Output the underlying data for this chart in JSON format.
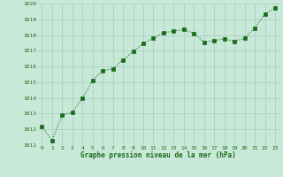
{
  "x": [
    0,
    1,
    2,
    3,
    4,
    5,
    6,
    7,
    8,
    9,
    10,
    11,
    12,
    13,
    14,
    15,
    16,
    17,
    18,
    19,
    20,
    21,
    22,
    23
  ],
  "y": [
    1012.2,
    1011.3,
    1012.9,
    1013.1,
    1014.0,
    1015.1,
    1015.75,
    1015.85,
    1016.4,
    1016.95,
    1017.45,
    1017.8,
    1018.15,
    1018.25,
    1018.35,
    1018.1,
    1017.55,
    1017.65,
    1017.75,
    1017.6,
    1017.8,
    1018.45,
    1019.35,
    1019.7
  ],
  "ylim": [
    1011,
    1020
  ],
  "yticks": [
    1011,
    1012,
    1013,
    1014,
    1015,
    1016,
    1017,
    1018,
    1019,
    1020
  ],
  "xticks": [
    0,
    1,
    2,
    3,
    4,
    5,
    6,
    7,
    8,
    9,
    10,
    11,
    12,
    13,
    14,
    15,
    16,
    17,
    18,
    19,
    20,
    21,
    22,
    23
  ],
  "xlabel": "Graphe pression niveau de la mer (hPa)",
  "line_color": "#1a6b1a",
  "marker_color": "#1a6b1a",
  "bg_color": "#c8e8d8",
  "grid_color": "#a8ccc0",
  "axis_label_color": "#1a6b1a",
  "tick_label_color": "#1a6b1a"
}
